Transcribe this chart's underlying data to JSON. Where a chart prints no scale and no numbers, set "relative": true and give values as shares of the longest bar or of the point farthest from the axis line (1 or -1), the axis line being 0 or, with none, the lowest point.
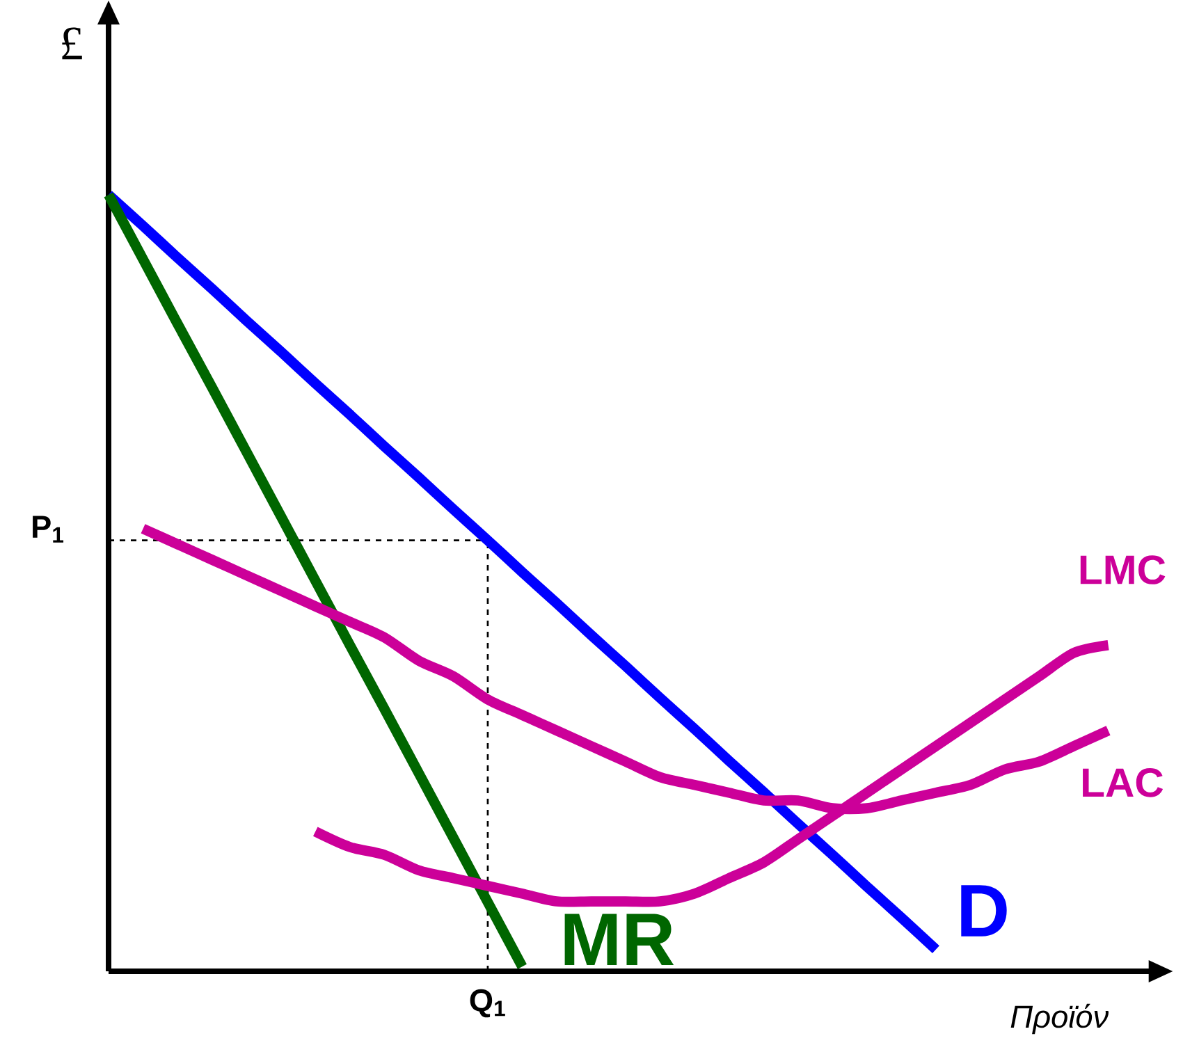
{
  "chart_data": {
    "type": "line",
    "relative": true,
    "xlabel": "*Προϊόν*",
    "ylabel": "£",
    "categories": [
      null,
      null,
      null,
      null,
      null,
      null,
      null,
      null,
      null,
      null,
      null,
      "**Q$_{1}$**",
      null,
      null,
      null,
      null,
      null,
      null,
      null,
      null,
      null,
      null,
      null,
      null,
      null,
      null,
      null,
      null,
      null,
      null,
      null
    ],
    "series": [
      {
        "name": "D",
        "color": "#0000ff",
        "values": [
          1.0,
          0.96,
          0.919,
          0.879,
          0.838,
          0.798,
          0.757,
          0.717,
          0.676,
          0.636,
          0.595,
          0.555,
          0.514,
          0.474,
          0.433,
          0.393,
          0.352,
          0.312,
          0.271,
          0.231,
          0.19,
          0.15,
          0.109,
          0.069,
          0.028,
          null,
          null,
          null,
          null,
          null,
          null
        ]
      },
      {
        "name": "MR",
        "color": "#006600",
        "values": [
          1.0,
          0.917,
          0.834,
          0.752,
          0.669,
          0.586,
          0.503,
          0.42,
          0.338,
          0.255,
          0.172,
          0.089,
          0.006,
          null,
          null,
          null,
          null,
          null,
          null,
          null,
          null,
          null,
          null,
          null,
          null,
          null,
          null,
          null,
          null,
          null,
          null
        ]
      },
      {
        "name": "LMC",
        "color": "#cc0099",
        "values": [
          null,
          null,
          null,
          null,
          null,
          null,
          0.18,
          0.16,
          0.15,
          0.13,
          0.12,
          0.11,
          0.1,
          0.09,
          0.09,
          0.09,
          0.09,
          0.1,
          0.12,
          0.14,
          0.17,
          0.2,
          0.23,
          0.26,
          0.29,
          0.32,
          0.35,
          0.38,
          0.41,
          0.42,
          null
        ]
      },
      {
        "name": "LAC",
        "color": "#cc0099",
        "values": [
          null,
          0.57,
          0.55,
          0.53,
          0.51,
          0.49,
          0.47,
          0.45,
          0.43,
          0.4,
          0.38,
          0.35,
          0.33,
          0.31,
          0.29,
          0.27,
          0.25,
          0.24,
          0.23,
          0.22,
          0.22,
          0.21,
          0.21,
          0.22,
          0.23,
          0.24,
          0.26,
          0.27,
          0.29,
          0.31,
          null
        ]
      }
    ],
    "ref_lines": [
      {
        "axis": "y",
        "value": 0.555,
        "label": "**P$_{1}$**",
        "color": "#000000",
        "line_style": "dashed"
      }
    ]
  }
}
